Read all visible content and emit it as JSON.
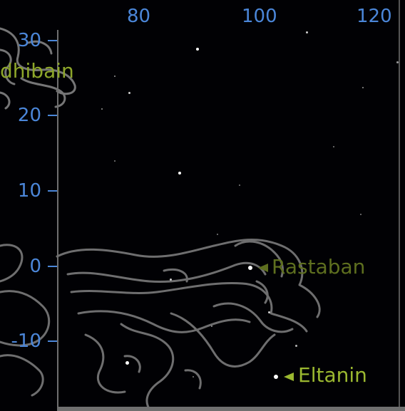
{
  "view": {
    "x_axis_labels": [
      "80",
      "100",
      "120"
    ],
    "y_axis_labels": [
      "30",
      "20",
      "10",
      "0",
      "-10"
    ],
    "star_names": {
      "edge": "dhibain",
      "rastaban": "Rastaban",
      "eltanin": "Eltanin"
    },
    "colors": {
      "background": "#010104",
      "axis": "#4b86d8",
      "label_bright": "#9bb830",
      "label_dim": "#5e6f1f",
      "outline": "#8a8a8a"
    },
    "icons": [
      "label-pointer-icon"
    ]
  }
}
